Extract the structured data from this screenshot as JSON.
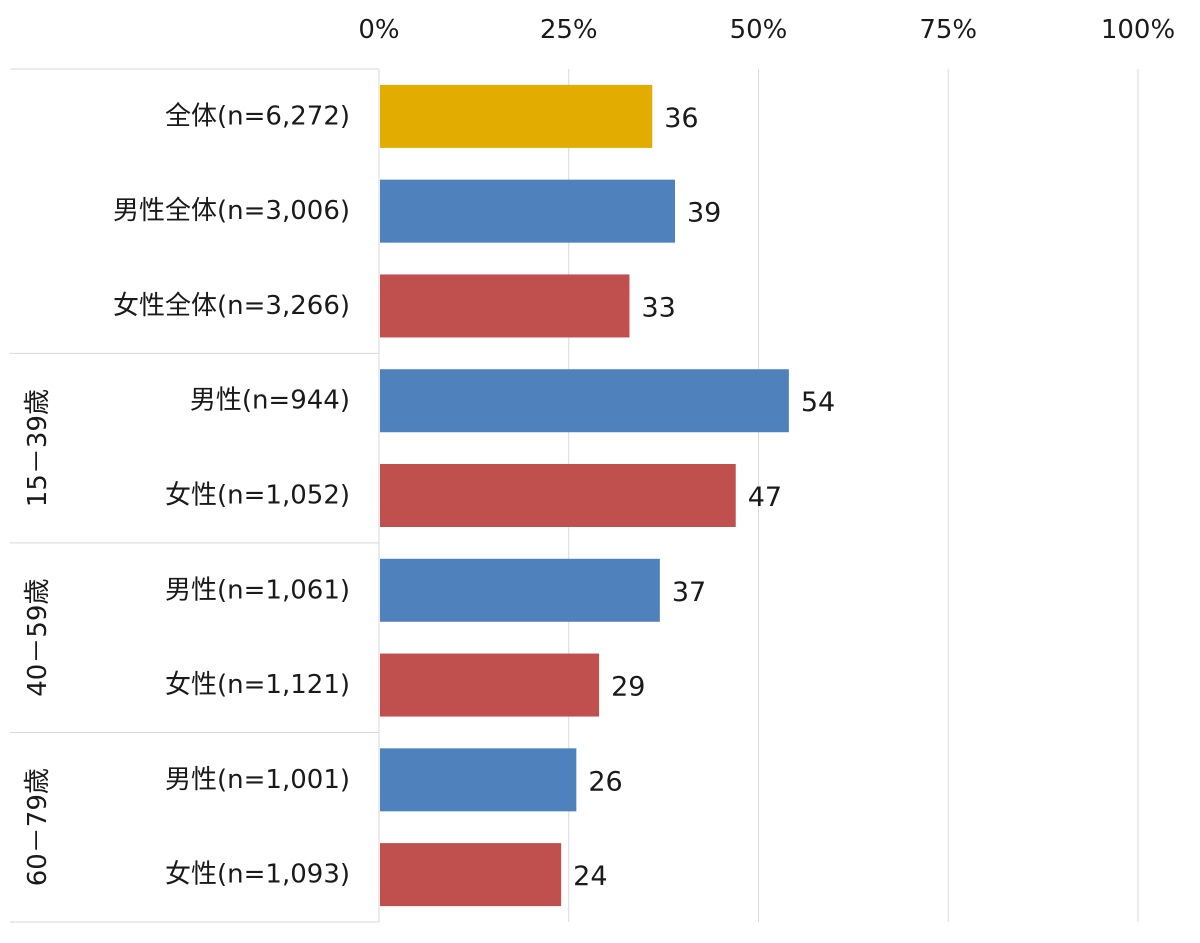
{
  "chart_data": {
    "type": "bar",
    "orientation": "horizontal",
    "xlim": [
      0,
      100
    ],
    "x_ticks": [
      "0%",
      "25%",
      "50%",
      "75%",
      "100%"
    ],
    "grid": true,
    "categories": [
      "全体(n=6,272)",
      "男性全体(n=3,006)",
      "女性全体(n=3,266)",
      "男性(n=944)",
      "女性(n=1,052)",
      "男性(n=1,061)",
      "女性(n=1,121)",
      "男性(n=1,001)",
      "女性(n=1,093)"
    ],
    "values": [
      36,
      39,
      33,
      54,
      47,
      37,
      29,
      26,
      24
    ],
    "bar_kind": [
      "total",
      "male",
      "female",
      "male",
      "female",
      "male",
      "female",
      "male",
      "female"
    ],
    "groups": [
      {
        "label": "",
        "rows": [
          0,
          2
        ]
      },
      {
        "label": "15－39歳",
        "rows": [
          3,
          4
        ]
      },
      {
        "label": "40－59歳",
        "rows": [
          5,
          6
        ]
      },
      {
        "label": "60－79歳",
        "rows": [
          7,
          8
        ]
      }
    ],
    "colors": {
      "total": "#E2AC00",
      "male": "#4F81BD",
      "female": "#C0504D",
      "grid": "#D9D9D9"
    }
  }
}
